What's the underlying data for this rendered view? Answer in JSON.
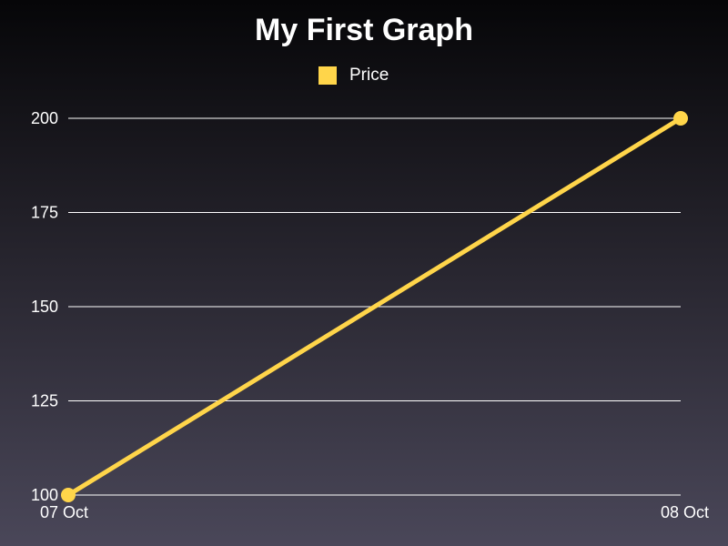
{
  "chart_data": {
    "type": "line",
    "title": "My First Graph",
    "categories": [
      "07 Oct",
      "08 Oct"
    ],
    "series": [
      {
        "name": "Price",
        "values": [
          100,
          200
        ],
        "color": "#ffd54a"
      }
    ],
    "ylim": [
      100,
      200
    ],
    "yticks": [
      100,
      125,
      150,
      175,
      200
    ],
    "xlabel": "",
    "ylabel": "",
    "grid": true,
    "legend_position": "top-center"
  },
  "colors": {
    "background_top": "#060608",
    "background_bottom": "#4a4759",
    "gridline": "#ffffff",
    "text": "#ffffff"
  }
}
